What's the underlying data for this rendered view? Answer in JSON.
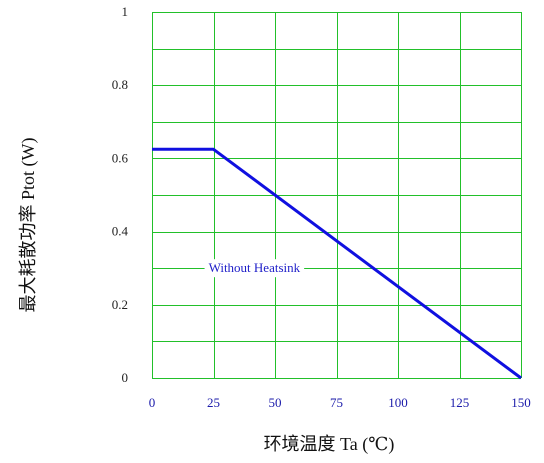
{
  "chart_data": {
    "type": "line",
    "title": "",
    "xlabel": "环境温度 Ta (℃)",
    "ylabel": "最大耗散功率 Ptot (W)",
    "xlim": [
      0,
      150
    ],
    "ylim": [
      0,
      1
    ],
    "x_ticks": [
      0,
      25,
      50,
      75,
      100,
      125,
      150
    ],
    "y_ticks": [
      "0",
      "0.2",
      "0.4",
      "0.6",
      "0.8",
      "1"
    ],
    "grid": true,
    "grid_color": "#22c02a",
    "line_color": "#1010e0",
    "series": [
      {
        "x": [
          0,
          25,
          150
        ],
        "y": [
          0.625,
          0.625,
          0
        ]
      }
    ],
    "annotations": [
      {
        "text": "Without Heatsink",
        "x": 23,
        "y": 0.3
      }
    ]
  }
}
